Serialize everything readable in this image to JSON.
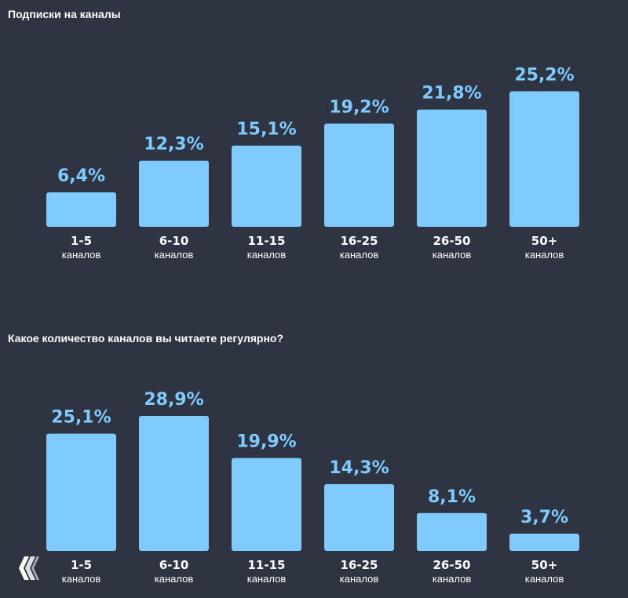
{
  "charts": [
    {
      "type": "bar",
      "title": "Подписки на каналы",
      "categories": [
        "1-5",
        "6-10",
        "11-15",
        "16-25",
        "26-50",
        "50+"
      ],
      "unit": "каналов",
      "values": [
        6.4,
        12.3,
        15.1,
        19.2,
        21.8,
        25.2
      ],
      "value_labels": [
        "6,4%",
        "12,3%",
        "15,1%",
        "19,2%",
        "21,8%",
        "25,2%"
      ],
      "ylim": [
        0,
        30
      ]
    },
    {
      "type": "bar",
      "title": "Какое количество каналов вы читаете регулярно?",
      "categories": [
        "1-5",
        "6-10",
        "11-15",
        "16-25",
        "26-50",
        "50+"
      ],
      "unit": "каналов",
      "values": [
        25.1,
        28.9,
        19.9,
        14.3,
        8.1,
        3.7
      ],
      "value_labels": [
        "25,1%",
        "28,9%",
        "19,9%",
        "14,3%",
        "8,1%",
        "3,7%"
      ],
      "ylim": [
        0,
        30
      ]
    }
  ],
  "colors": {
    "background": "#2e3442",
    "bar": "#7fcbff",
    "text": "#ffffff"
  },
  "logo": {
    "icon": "diamond-logo-icon"
  }
}
